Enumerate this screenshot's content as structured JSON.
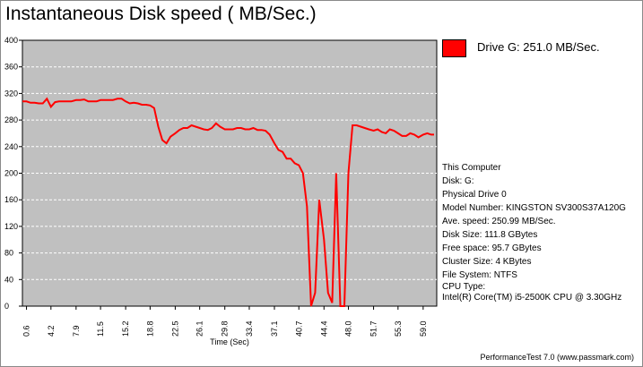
{
  "title": "Instantaneous Disk speed ( MB/Sec.)",
  "legend": {
    "label": "Drive G: 251.0 MB/Sec.",
    "color": "#ff0000"
  },
  "info": {
    "computer": "This Computer",
    "disk": "Disk: G:",
    "physical_drive": "Physical Drive 0",
    "model": "Model Number: KINGSTON SV300S37A120G",
    "ave_speed": "Ave. speed: 250.99 MB/Sec.",
    "disk_size": "Disk Size: 111.8 GBytes",
    "free_space": "Free space: 95.7 GBytes",
    "cluster_size": "Cluster Size: 4 KBytes",
    "file_system": "File System: NTFS",
    "cpu_type_label": "CPU Type:",
    "cpu_type_value": "Intel(R) Core(TM) i5-2500K CPU @ 3.30GHz"
  },
  "footer": "PerformanceTest 7.0 (www.passmark.com)",
  "chart_data": {
    "type": "line",
    "title": "Instantaneous Disk speed ( MB/Sec.)",
    "xlabel": "Time (Sec)",
    "ylabel": "",
    "xlim": [
      0,
      61
    ],
    "ylim": [
      0,
      400
    ],
    "yticks": [
      0,
      40,
      80,
      120,
      160,
      200,
      240,
      280,
      320,
      360,
      400
    ],
    "xtick_labels": [
      "0.6",
      "4.2",
      "7.9",
      "11.5",
      "15.2",
      "18.8",
      "22.5",
      "26.1",
      "29.8",
      "33.4",
      "37.1",
      "40.7",
      "44.4",
      "48.0",
      "51.7",
      "55.3",
      "59.0"
    ],
    "grid": true,
    "background": "#c0c0c0",
    "legend_position": "top-right",
    "series": [
      {
        "name": "Drive G: 251.0 MB/Sec.",
        "color": "#ff0000",
        "x": [
          0,
          0.6,
          1.2,
          1.8,
          2.4,
          3.0,
          3.6,
          4.2,
          4.8,
          5.4,
          6.0,
          6.6,
          7.2,
          7.9,
          8.5,
          9.1,
          9.7,
          10.3,
          10.9,
          11.5,
          12.1,
          12.7,
          13.3,
          14.0,
          14.6,
          15.2,
          15.8,
          16.4,
          17.0,
          17.6,
          18.2,
          18.8,
          19.4,
          20.0,
          20.6,
          21.2,
          21.8,
          22.5,
          23.1,
          23.7,
          24.3,
          24.9,
          25.5,
          26.1,
          26.7,
          27.3,
          27.9,
          28.5,
          29.1,
          29.8,
          30.4,
          31.0,
          31.6,
          32.2,
          32.8,
          33.4,
          34.0,
          34.6,
          35.2,
          35.8,
          36.4,
          37.1,
          37.7,
          38.3,
          38.9,
          39.5,
          40.1,
          40.7,
          41.3,
          41.9,
          42.5,
          43.1,
          43.7,
          44.4,
          45.0,
          45.6,
          46.2,
          46.8,
          47.4,
          48.0,
          48.6,
          49.2,
          49.8,
          50.4,
          51.0,
          51.7,
          52.3,
          52.9,
          53.5,
          54.1,
          54.7,
          55.3,
          55.9,
          56.5,
          57.1,
          57.7,
          58.3,
          59.0,
          59.6,
          60.2,
          60.6
        ],
        "y": [
          308,
          308,
          306,
          306,
          305,
          305,
          312,
          300,
          307,
          308,
          308,
          308,
          308,
          310,
          310,
          311,
          308,
          308,
          308,
          310,
          310,
          310,
          310,
          312,
          312,
          308,
          305,
          306,
          305,
          303,
          303,
          302,
          298,
          270,
          250,
          245,
          255,
          260,
          265,
          268,
          268,
          272,
          270,
          268,
          266,
          265,
          268,
          275,
          270,
          266,
          266,
          266,
          268,
          268,
          266,
          266,
          268,
          265,
          265,
          264,
          258,
          245,
          235,
          232,
          222,
          222,
          215,
          212,
          200,
          150,
          0,
          20,
          160,
          100,
          20,
          5,
          200,
          0,
          0,
          200,
          272,
          272,
          270,
          268,
          266,
          264,
          266,
          262,
          260,
          266,
          264,
          260,
          256,
          256,
          260,
          258,
          254,
          258,
          260,
          258,
          258
        ]
      }
    ]
  }
}
